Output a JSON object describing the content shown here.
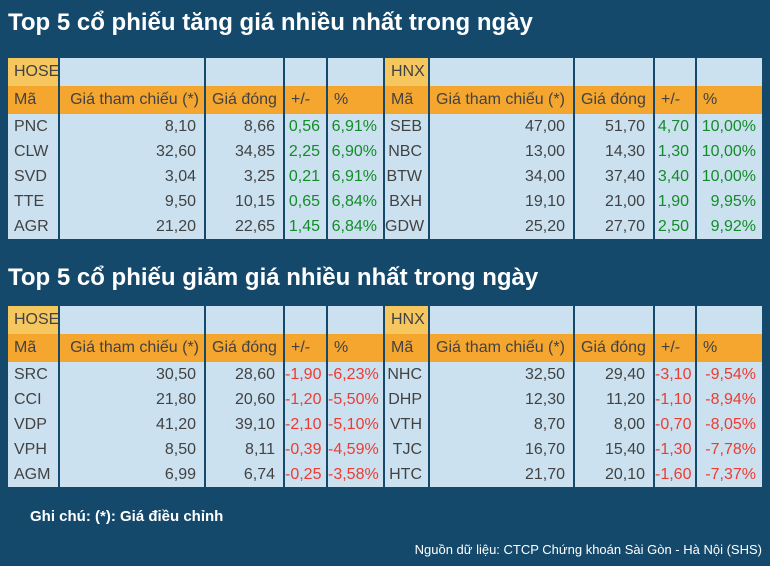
{
  "colors": {
    "background": "#14496B",
    "cell_background": "#CBE1F0",
    "header_orange": "#F4A62F",
    "exchange_orange": "#F6C75F",
    "positive_green": "#128C28",
    "negative_red": "#EE3A31"
  },
  "sections": [
    {
      "title": "Top 5 cổ phiếu tăng giá nhiều nhất trong ngày",
      "left_exchange": "HOSE",
      "right_exchange": "HNX",
      "columns": {
        "code": "Mã",
        "ref": "Giá tham chiếu (*)",
        "close": "Giá đóng",
        "change": "+/-",
        "percent": "%"
      },
      "hose_rows": [
        [
          "PNC",
          "8,10",
          "8,66",
          "0,56",
          "6,91%"
        ],
        [
          "CLW",
          "32,60",
          "34,85",
          "2,25",
          "6,90%"
        ],
        [
          "SVD",
          "3,04",
          "3,25",
          "0,21",
          "6,91%"
        ],
        [
          "TTE",
          "9,50",
          "10,15",
          "0,65",
          "6,84%"
        ],
        [
          "AGR",
          "21,20",
          "22,65",
          "1,45",
          "6,84%"
        ]
      ],
      "hnx_rows": [
        [
          "SEB",
          "47,00",
          "51,70",
          "4,70",
          "10,00%"
        ],
        [
          "NBC",
          "13,00",
          "14,30",
          "1,30",
          "10,00%"
        ],
        [
          "BTW",
          "34,00",
          "37,40",
          "3,40",
          "10,00%"
        ],
        [
          "BXH",
          "19,10",
          "21,00",
          "1,90",
          "9,95%"
        ],
        [
          "GDW",
          "25,20",
          "27,70",
          "2,50",
          "9,92%"
        ]
      ]
    },
    {
      "title": "Top 5 cổ phiếu giảm giá nhiều nhất trong ngày",
      "left_exchange": "HOSE",
      "right_exchange": "HNX",
      "columns": {
        "code": "Mã",
        "ref": "Giá tham chiếu (*)",
        "close": "Giá đóng",
        "change": "+/-",
        "percent": "%"
      },
      "hose_rows": [
        [
          "SRC",
          "30,50",
          "28,60",
          "-1,90",
          "-6,23%"
        ],
        [
          "CCI",
          "21,80",
          "20,60",
          "-1,20",
          "-5,50%"
        ],
        [
          "VDP",
          "41,20",
          "39,10",
          "-2,10",
          "-5,10%"
        ],
        [
          "VPH",
          "8,50",
          "8,11",
          "-0,39",
          "-4,59%"
        ],
        [
          "AGM",
          "6,99",
          "6,74",
          "-0,25",
          "-3,58%"
        ]
      ],
      "hnx_rows": [
        [
          "NHC",
          "32,50",
          "29,40",
          "-3,10",
          "-9,54%"
        ],
        [
          "DHP",
          "12,30",
          "11,20",
          "-1,10",
          "-8,94%"
        ],
        [
          "VTH",
          "8,70",
          "8,00",
          "-0,70",
          "-8,05%"
        ],
        [
          "TJC",
          "16,70",
          "15,40",
          "-1,30",
          "-7,78%"
        ],
        [
          "HTC",
          "21,70",
          "20,10",
          "-1,60",
          "-7,37%"
        ]
      ]
    }
  ],
  "footer": {
    "note": "Ghi chú: (*): Giá điều chỉnh",
    "source": "Nguồn dữ liệu: CTCP Chứng khoán Sài Gòn - Hà Nội (SHS)"
  }
}
